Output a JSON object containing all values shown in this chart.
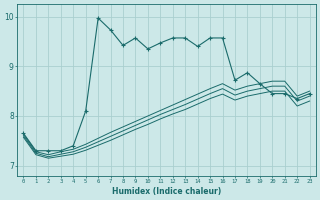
{
  "xlabel": "Humidex (Indice chaleur)",
  "bg_color": "#cce8e8",
  "line_color": "#1a6b6b",
  "grid_color": "#aacfcf",
  "xlim": [
    -0.5,
    23.5
  ],
  "ylim": [
    6.8,
    10.25
  ],
  "yticks": [
    7,
    8,
    9,
    10
  ],
  "xticks": [
    0,
    1,
    2,
    3,
    4,
    5,
    6,
    7,
    8,
    9,
    10,
    11,
    12,
    13,
    14,
    15,
    16,
    17,
    18,
    19,
    20,
    21,
    22,
    23
  ],
  "series1_x": [
    0,
    1,
    2,
    3,
    4,
    5,
    6,
    7,
    8,
    9,
    10,
    11,
    12,
    13,
    14,
    15,
    16,
    17,
    18,
    19,
    20,
    21,
    22,
    23
  ],
  "series1_y": [
    7.65,
    7.3,
    7.3,
    7.3,
    7.4,
    8.1,
    9.97,
    9.73,
    9.42,
    9.57,
    9.35,
    9.47,
    9.57,
    9.57,
    9.4,
    9.57,
    9.57,
    8.72,
    8.87,
    8.65,
    8.45,
    8.45,
    8.35,
    8.45
  ],
  "series2_x": [
    0,
    1,
    2,
    3,
    4,
    5,
    6,
    7,
    8,
    9,
    10,
    11,
    12,
    13,
    14,
    15,
    16,
    17,
    18,
    19,
    20,
    21,
    22,
    23
  ],
  "series2_y": [
    7.63,
    7.28,
    7.22,
    7.28,
    7.33,
    7.43,
    7.55,
    7.67,
    7.78,
    7.89,
    8.0,
    8.11,
    8.22,
    8.33,
    8.44,
    8.55,
    8.65,
    8.52,
    8.6,
    8.65,
    8.7,
    8.7,
    8.4,
    8.5
  ],
  "series3_x": [
    0,
    1,
    2,
    3,
    4,
    5,
    6,
    7,
    8,
    9,
    10,
    11,
    12,
    13,
    14,
    15,
    16,
    17,
    18,
    19,
    20,
    21,
    22,
    23
  ],
  "series3_y": [
    7.6,
    7.25,
    7.18,
    7.23,
    7.28,
    7.37,
    7.48,
    7.59,
    7.7,
    7.81,
    7.92,
    8.03,
    8.13,
    8.23,
    8.34,
    8.45,
    8.55,
    8.42,
    8.5,
    8.55,
    8.6,
    8.6,
    8.3,
    8.4
  ],
  "series4_x": [
    0,
    1,
    2,
    3,
    4,
    5,
    6,
    7,
    8,
    9,
    10,
    11,
    12,
    13,
    14,
    15,
    16,
    17,
    18,
    19,
    20,
    21,
    22,
    23
  ],
  "series4_y": [
    7.57,
    7.22,
    7.15,
    7.19,
    7.23,
    7.31,
    7.41,
    7.51,
    7.62,
    7.73,
    7.83,
    7.94,
    8.04,
    8.13,
    8.24,
    8.35,
    8.44,
    8.32,
    8.4,
    8.45,
    8.5,
    8.5,
    8.2,
    8.3
  ]
}
